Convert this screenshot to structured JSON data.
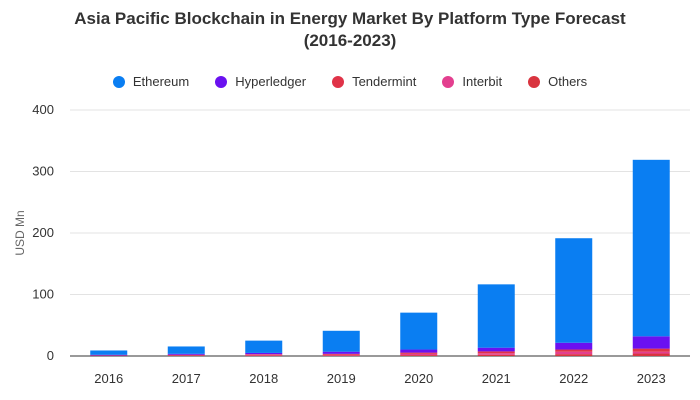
{
  "chart_data": {
    "type": "bar",
    "stacked": true,
    "title_line1": "Asia Pacific Blockchain in Energy Market By Platform Type Forecast",
    "title_line2": "(2016-2023)",
    "ylabel": "USD Mn",
    "xlabel": "",
    "ylim": [
      0,
      400
    ],
    "yticks": [
      0,
      100,
      200,
      300,
      400
    ],
    "grid": true,
    "legend_position": "top",
    "categories": [
      "2016",
      "2017",
      "2018",
      "2019",
      "2020",
      "2021",
      "2022",
      "2023"
    ],
    "series": [
      {
        "name": "Ethereum",
        "color": "#0a7ef2",
        "values": [
          7,
          12,
          20,
          34,
          60,
          103,
          170,
          287
        ]
      },
      {
        "name": "Hyperledger",
        "color": "#6a11f0",
        "values": [
          1,
          1.5,
          2,
          3.5,
          5,
          6,
          11,
          20
        ]
      },
      {
        "name": "Tendermint",
        "color": "#e03348",
        "values": [
          0.5,
          1,
          1,
          1.5,
          2,
          3,
          3.5,
          5
        ]
      },
      {
        "name": "Interbit",
        "color": "#e33f8f",
        "values": [
          0.3,
          0.5,
          1,
          1,
          2,
          2.5,
          4,
          3
        ]
      },
      {
        "name": "Others",
        "color": "#d9343f",
        "values": [
          0.2,
          0.5,
          1,
          1,
          1.5,
          2,
          3,
          4
        ]
      }
    ]
  }
}
